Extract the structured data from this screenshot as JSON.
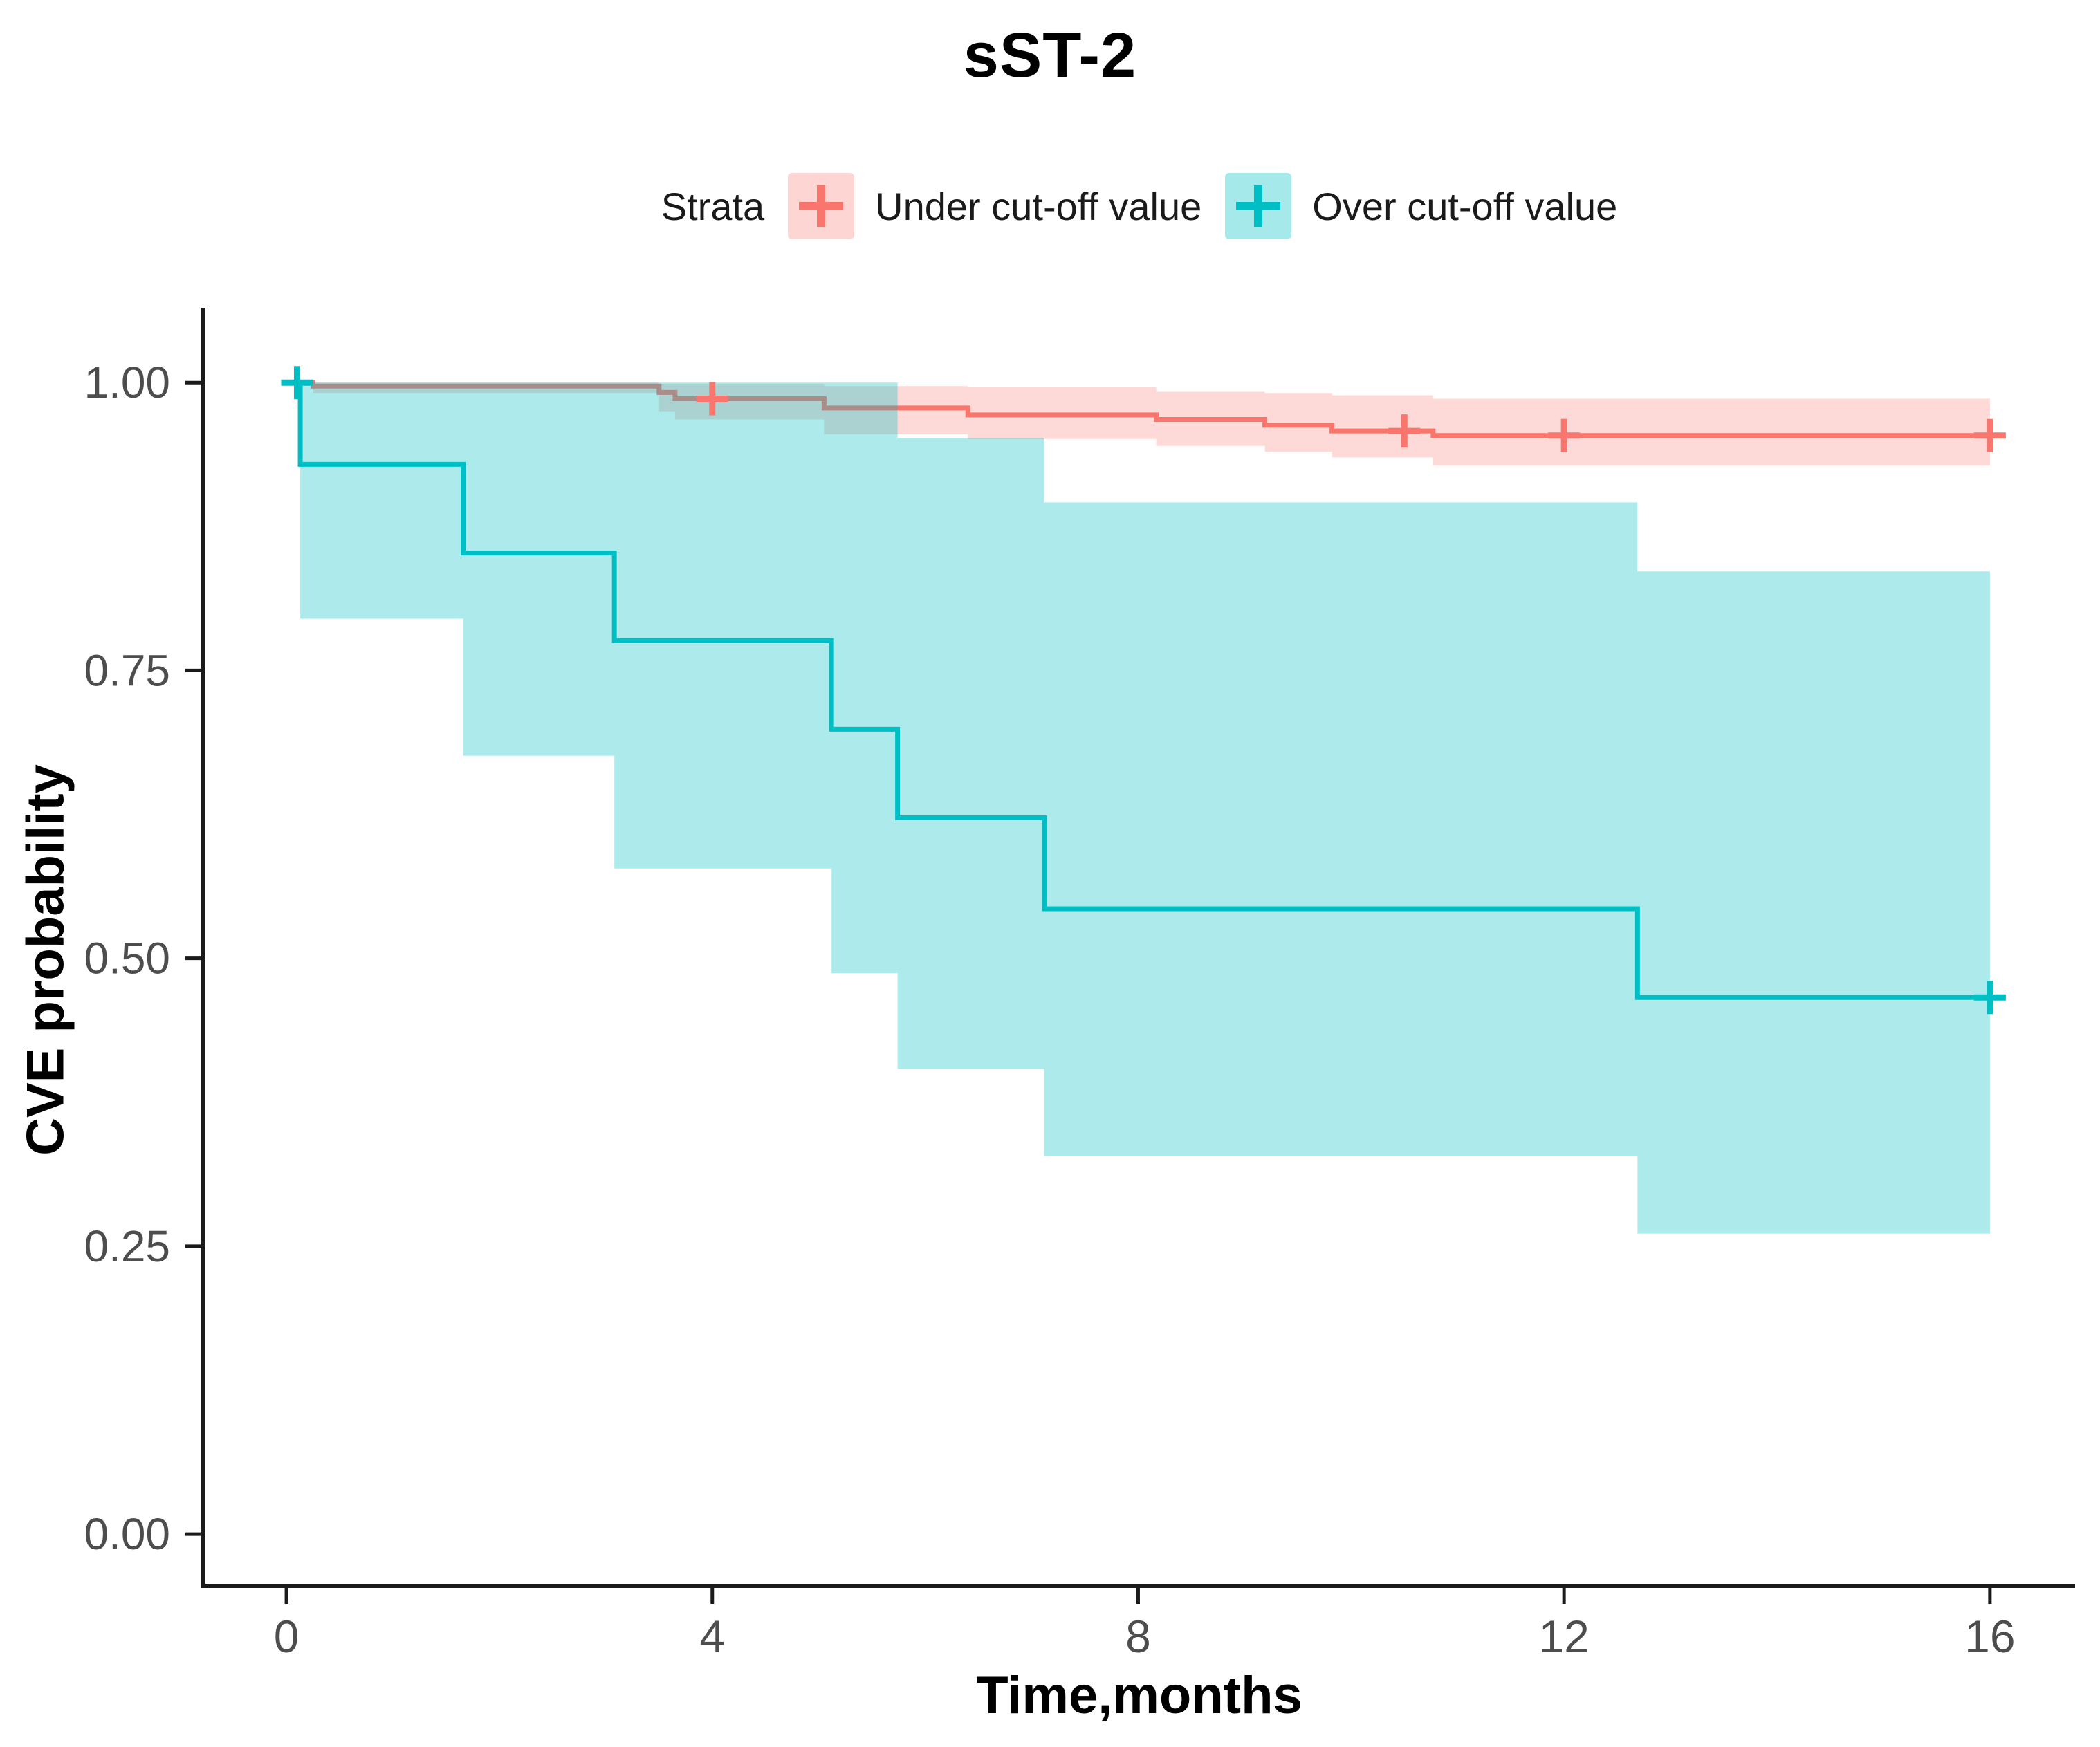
{
  "page": {
    "title": "sST-2"
  },
  "chart_data": {
    "type": "line",
    "subtype": "kaplan-meier-step",
    "title": "sST-2",
    "xlabel": "Time,months",
    "ylabel": "CVE probability",
    "xlim": [
      -0.78,
      16.8
    ],
    "ylim": [
      -0.045,
      1.065
    ],
    "grid": false,
    "background": "#ffffff",
    "axis_color": "#1a1a1a",
    "tick_label_color": "#4d4d4d",
    "xticks": [
      {
        "value": 0,
        "label": "0"
      },
      {
        "value": 4,
        "label": "4"
      },
      {
        "value": 8,
        "label": "8"
      },
      {
        "value": 12,
        "label": "12"
      },
      {
        "value": 16,
        "label": "16"
      }
    ],
    "yticks": [
      {
        "value": 0.0,
        "label": "0.00"
      },
      {
        "value": 0.25,
        "label": "0.25"
      },
      {
        "value": 0.5,
        "label": "0.50"
      },
      {
        "value": 0.75,
        "label": "0.75"
      },
      {
        "value": 1.0,
        "label": "1.00"
      }
    ],
    "legend": {
      "title": "Strata",
      "position": "top",
      "entries": [
        {
          "id": "under-cutoff",
          "label": "Under cut-off value",
          "color": "#F8766D",
          "key_fill": "rgba(248,118,109,0.30)"
        },
        {
          "id": "over-cutoff",
          "label": "Over cut-off value",
          "color": "#00BFC4",
          "key_fill": "rgba(0,191,196,0.35)"
        }
      ]
    },
    "series": [
      {
        "id": "under-cutoff",
        "name": "Under cut-off value",
        "color": "#F8766D",
        "band_fill": "rgba(248,118,109,0.27)",
        "end_time": 16.0,
        "steps": [
          [
            0,
            1.0
          ],
          [
            0.25,
            0.997
          ],
          [
            3.5,
            0.9915
          ],
          [
            3.65,
            0.986
          ],
          [
            5.05,
            0.978
          ],
          [
            6.4,
            0.972
          ],
          [
            8.17,
            0.968
          ],
          [
            9.19,
            0.963
          ],
          [
            9.82,
            0.958
          ],
          [
            10.77,
            0.954
          ]
        ],
        "censors": [
          [
            4.0,
            0.986
          ],
          [
            10.5,
            0.958
          ],
          [
            12.0,
            0.954
          ],
          [
            16.0,
            0.954
          ]
        ],
        "ci_upper": [
          [
            0,
            1.0
          ],
          [
            3.5,
            0.999
          ],
          [
            5.05,
            0.997
          ],
          [
            6.4,
            0.996
          ],
          [
            8.17,
            0.992
          ],
          [
            9.19,
            0.991
          ],
          [
            9.82,
            0.989
          ],
          [
            10.77,
            0.986
          ]
        ],
        "ci_lower": [
          [
            0,
            1.0
          ],
          [
            0.25,
            0.991
          ],
          [
            3.5,
            0.975
          ],
          [
            3.65,
            0.968
          ],
          [
            5.05,
            0.955
          ],
          [
            6.4,
            0.951
          ],
          [
            8.17,
            0.945
          ],
          [
            9.19,
            0.94
          ],
          [
            9.82,
            0.935
          ],
          [
            10.77,
            0.928
          ]
        ]
      },
      {
        "id": "over-cutoff",
        "name": "Over cut-off value",
        "color": "#00BFC4",
        "band_fill": "rgba(0,191,196,0.32)",
        "end_time": 16.0,
        "steps": [
          [
            0,
            1.0
          ],
          [
            0.13,
            0.929
          ],
          [
            1.66,
            0.852
          ],
          [
            3.08,
            0.776
          ],
          [
            5.12,
            0.699
          ],
          [
            5.74,
            0.622
          ],
          [
            7.12,
            0.543
          ],
          [
            12.69,
            0.466
          ]
        ],
        "censors": [
          [
            0.1,
            1.0
          ],
          [
            16.0,
            0.466
          ]
        ],
        "ci_upper": [
          [
            0,
            1.0
          ],
          [
            5.74,
            0.952
          ],
          [
            7.12,
            0.896
          ],
          [
            12.69,
            0.836
          ]
        ],
        "ci_lower": [
          [
            0,
            1.0
          ],
          [
            0.13,
            0.795
          ],
          [
            1.66,
            0.676
          ],
          [
            3.08,
            0.578
          ],
          [
            5.12,
            0.487
          ],
          [
            5.74,
            0.404
          ],
          [
            7.12,
            0.328
          ],
          [
            12.69,
            0.261
          ]
        ]
      }
    ]
  }
}
